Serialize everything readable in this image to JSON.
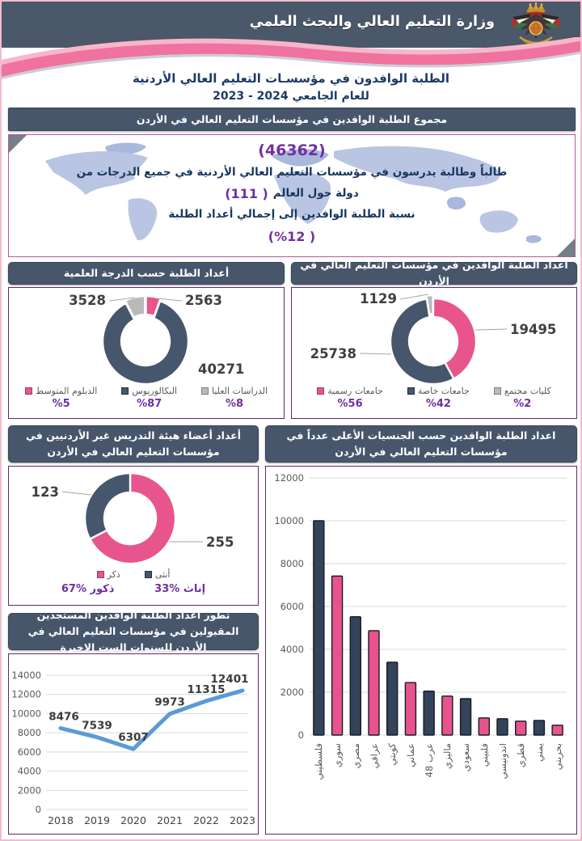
{
  "palette": {
    "pink": "#e7558c",
    "navy": "#46566c",
    "gray": "#b9b9b9",
    "bar_navy": "#33435c",
    "bar_pink": "#e8538c",
    "line_blue": "#5b9bd5",
    "purple": "#7030a0",
    "slate_header": "#47566b",
    "navy_text": "#1d3a66"
  },
  "header": {
    "ministry": "وزارة التعليم العالي والبحث العلمي",
    "emblem": "jordan-coat-of-arms",
    "subtitle_line1": "الطلبة الوافدون في مؤسسـات التعليم العالي الأردنية",
    "subtitle_line2_text": "للعام الجامعي",
    "subtitle_line2_years": "2023  - 2024"
  },
  "summary": {
    "header": "مجموع الطلبة الوافدين في مؤسسات التعليم العالي في الأردن",
    "total": "(46362)",
    "line1": "طالباً وطالبة يدرسون في مؤسسات التعليم العالي الأردنية في جميع الدرجات من",
    "countries": "(111 )",
    "countries_text": "دولة حول العالم",
    "ratio_line": "نسبة الطلبة الوافدين إلى إجمالي أعداد الطلبة",
    "ratio": "(%12 )"
  },
  "chart_data": [
    {
      "id": "degrees-donut",
      "type": "pie",
      "title": "أعداد الطلبة حسب الدرجة العلمية",
      "slices": [
        {
          "value": 2563,
          "color": "pink"
        },
        {
          "value": 40271,
          "color": "navy"
        },
        {
          "value": 3528,
          "color": "gray"
        }
      ],
      "legend": [
        {
          "label": "الدراسات العليا",
          "color": "gray",
          "percent": "%8"
        },
        {
          "label": "البكالوريوس",
          "color": "navy",
          "percent": "%87"
        },
        {
          "label": "الدبلوم المتوسط",
          "color": "pink",
          "percent": "%5"
        }
      ],
      "legend_position": "bottom"
    },
    {
      "id": "institutions-donut",
      "type": "pie",
      "title": "أعداد الطلبة الوافدين في مؤسسات التعليم العالي في الأردن",
      "slices": [
        {
          "value": 19495,
          "color": "pink"
        },
        {
          "value": 25738,
          "color": "navy"
        },
        {
          "value": 1129,
          "color": "gray"
        }
      ],
      "legend": [
        {
          "label": "كليات مجتمع",
          "color": "gray",
          "percent": "%2"
        },
        {
          "label": "جامعات خاصة",
          "color": "navy",
          "percent": "%42"
        },
        {
          "label": "جامعات رسمية",
          "color": "pink",
          "percent": "%56"
        }
      ],
      "legend_position": "bottom"
    },
    {
      "id": "faculty-donut",
      "type": "pie",
      "title": "أعداد أعضاء هيئة التدريس غير الأردنيين في مؤسسات التعليم العالي في الأردن",
      "slices": [
        {
          "value": 255,
          "color": "pink"
        },
        {
          "value": 123,
          "color": "navy"
        }
      ],
      "legend": [
        {
          "label": "أنثى",
          "color": "navy",
          "percent": null
        },
        {
          "label": "ذكر",
          "color": "pink",
          "percent": null
        }
      ],
      "footnotes": [
        "33% إناث",
        "67% ذكور"
      ],
      "legend_position": "bottom"
    },
    {
      "id": "nationalities-bar",
      "type": "bar",
      "title": "اعداد الطلبة الوافدين حسب الجنسيات  الأعلى عدداً في مؤسسات التعليم العالي في الأردن",
      "categories": [
        "فلسطيني",
        "سوري",
        "مصري",
        "عراقي",
        "كويتي",
        "عماني",
        "عرب 48",
        "ماليزي",
        "سعودي",
        "فلبيني",
        "اندونيسي",
        "قطري",
        "يمني",
        "بحريني"
      ],
      "values": [
        10000,
        7420,
        5520,
        4870,
        3400,
        2450,
        2050,
        1820,
        1700,
        800,
        760,
        650,
        680,
        460
      ],
      "bar_color_cycle": [
        "bar_navy",
        "bar_pink"
      ],
      "ylim": [
        0,
        12000
      ],
      "ytick_step": 2000,
      "grid": true
    },
    {
      "id": "newcomers-line",
      "type": "line",
      "title": "تطور أعداد الطلبة الوافدين المستجدين المقبولين في مؤسسات التعليم العالي في الأردن للسنوات الست الاخيرة",
      "x": [
        "2018",
        "2019",
        "2020",
        "2021",
        "2022",
        "2023"
      ],
      "values": [
        8476,
        7539,
        6307,
        9973,
        11315,
        12401
      ],
      "ylim": [
        0,
        14000
      ],
      "ytick_step": 2000,
      "grid": true,
      "line_color": "#5b9bd5"
    }
  ]
}
